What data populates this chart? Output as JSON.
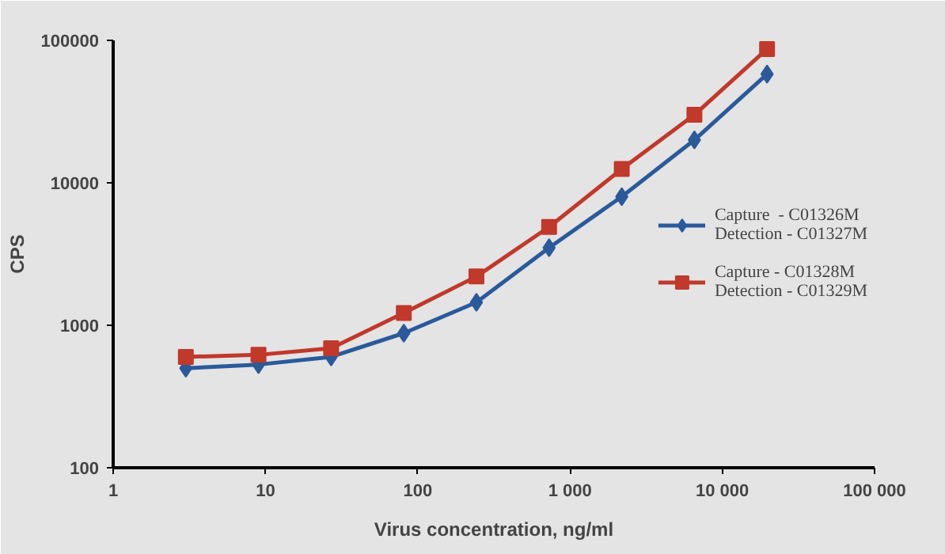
{
  "chart_data": {
    "type": "line",
    "xlabel": "Virus concentration, ng/ml",
    "ylabel": "CPS",
    "log": "xy",
    "x": [
      3,
      9,
      27,
      81,
      243,
      729,
      2187,
      6561,
      19683
    ],
    "series": [
      {
        "name": "Capture  - C01326M\nDetection - C01327M",
        "color": "#2a5a9a",
        "marker": "diamond",
        "values": [
          500,
          530,
          600,
          880,
          1450,
          3500,
          8000,
          20000,
          58000
        ]
      },
      {
        "name": "Capture - C01328M\nDetection - C01329M",
        "color": "#c0392b",
        "marker": "square",
        "values": [
          600,
          620,
          690,
          1220,
          2200,
          4900,
          12500,
          30000,
          87000
        ]
      }
    ],
    "xlim": [
      1,
      100000
    ],
    "xticks": [
      1,
      10,
      100,
      {
        "value": 1000,
        "label": "1 000"
      },
      {
        "value": 10000,
        "label": "10 000"
      },
      {
        "value": 100000,
        "label": "100 000"
      }
    ],
    "ylim": [
      100,
      100000
    ],
    "yticks": [
      100,
      1000,
      10000,
      100000
    ],
    "legend": "right",
    "line_style": "solid"
  }
}
